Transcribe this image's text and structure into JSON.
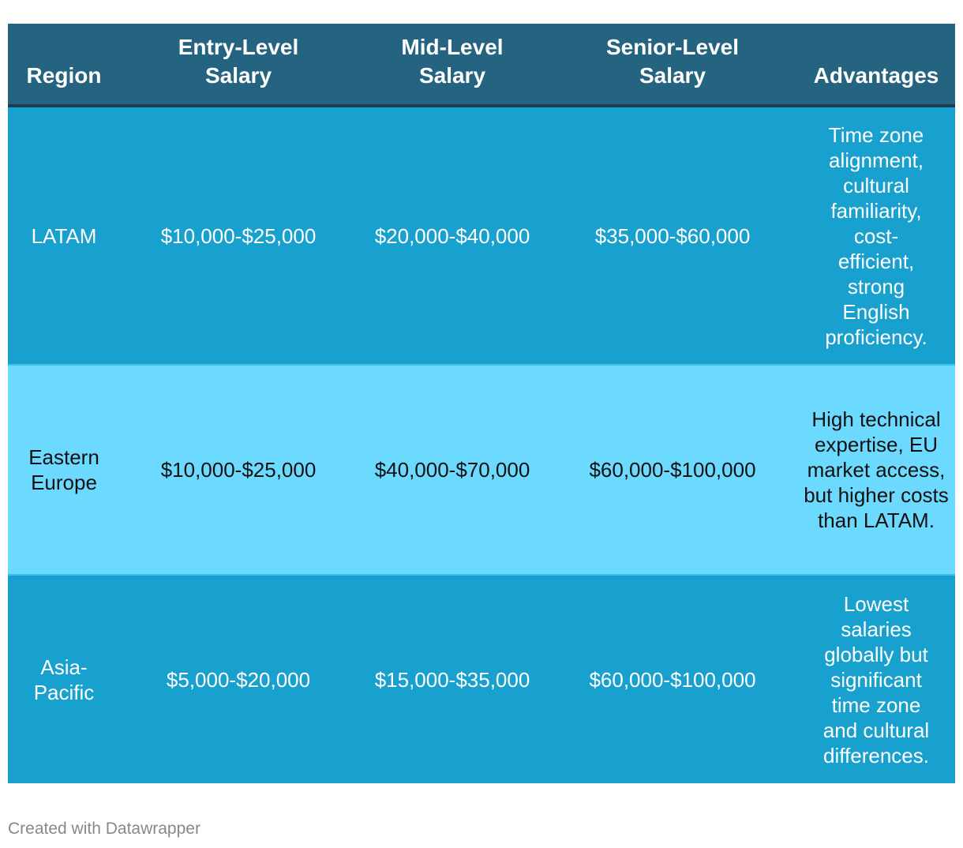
{
  "chart_data": {
    "type": "table",
    "columns": [
      "Region",
      "Entry-Level Salary",
      "Mid-Level Salary",
      "Senior-Level Salary",
      "Advantages"
    ],
    "rows": [
      {
        "region": "LATAM",
        "entry": "$10,000-$25,000",
        "mid": "$20,000-$40,000",
        "senior": "$35,000-$60,000",
        "advantages": "Time zone alignment, cultural familiarity, cost-efficient, strong English proficiency."
      },
      {
        "region": "Eastern Europe",
        "entry": "$10,000-$25,000",
        "mid": "$40,000-$70,000",
        "senior": "$60,000-$100,000",
        "advantages": "High technical expertise, EU market access, but higher costs than LATAM."
      },
      {
        "region": "Asia-Pacific",
        "entry": "$5,000-$20,000",
        "mid": "$15,000-$35,000",
        "senior": "$60,000-$100,000",
        "advantages": "Lowest salaries globally but significant time zone and cultural differences."
      }
    ]
  },
  "colors": {
    "header_bg": "#246481",
    "row_dark": "#18a0cf",
    "row_light": "#6cdaff"
  },
  "footer": {
    "credit": "Created with Datawrapper"
  }
}
